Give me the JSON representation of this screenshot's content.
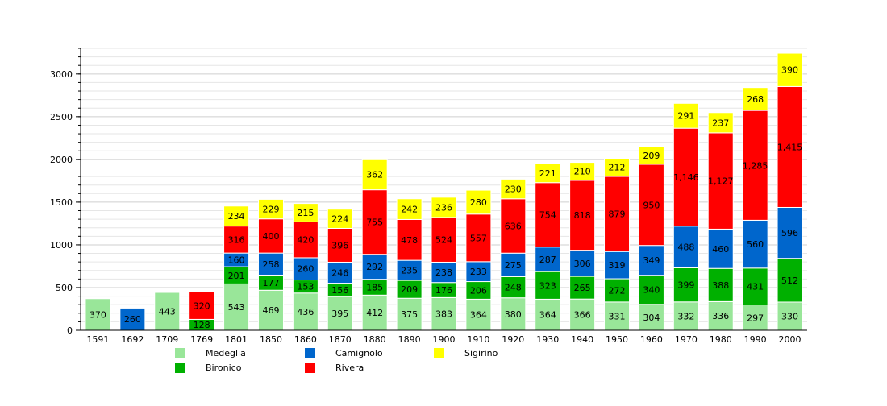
{
  "chart_data": {
    "type": "bar",
    "stacked": true,
    "categories": [
      "1591",
      "1692",
      "1709",
      "1769",
      "1801",
      "1850",
      "1860",
      "1870",
      "1880",
      "1890",
      "1900",
      "1910",
      "1920",
      "1930",
      "1940",
      "1950",
      "1960",
      "1970",
      "1980",
      "1990",
      "2000"
    ],
    "ylim": [
      0,
      3300
    ],
    "yticks": [
      0,
      500,
      1000,
      1500,
      2000,
      2500,
      3000
    ],
    "grid": true,
    "legend_position": "bottom",
    "series": [
      {
        "name": "Medeglia",
        "color": "#99e699",
        "values": [
          370,
          null,
          443,
          null,
          543,
          469,
          436,
          395,
          412,
          375,
          383,
          364,
          380,
          364,
          366,
          331,
          304,
          332,
          336,
          297,
          330
        ],
        "labels": [
          "370",
          "",
          "443",
          "",
          "543",
          "469",
          "436",
          "395",
          "412",
          "375",
          "383",
          "364",
          "380",
          "364",
          "366",
          "331",
          "304",
          "332",
          "336",
          "297",
          "330"
        ]
      },
      {
        "name": "Bironico",
        "color": "#00b000",
        "values": [
          null,
          null,
          null,
          128,
          201,
          177,
          153,
          156,
          185,
          209,
          176,
          206,
          248,
          323,
          265,
          272,
          340,
          399,
          388,
          431,
          512
        ],
        "labels": [
          "",
          "",
          "",
          "128",
          "201",
          "177",
          "153",
          "156",
          "185",
          "209",
          "176",
          "206",
          "248",
          "323",
          "265",
          "272",
          "340",
          "399",
          "388",
          "431",
          "512"
        ]
      },
      {
        "name": "Camignolo",
        "color": "#0066cc",
        "values": [
          null,
          260,
          null,
          null,
          160,
          258,
          260,
          246,
          292,
          235,
          238,
          233,
          275,
          287,
          306,
          319,
          349,
          488,
          460,
          560,
          596
        ],
        "labels": [
          "",
          "260",
          "",
          "",
          "160",
          "258",
          "260",
          "246",
          "292",
          "235",
          "238",
          "233",
          "275",
          "287",
          "306",
          "319",
          "349",
          "488",
          "460",
          "560",
          "596"
        ]
      },
      {
        "name": "Rivera",
        "color": "#ff0000",
        "values": [
          null,
          null,
          null,
          320,
          316,
          400,
          420,
          396,
          755,
          478,
          524,
          557,
          636,
          754,
          818,
          879,
          950,
          1146,
          1127,
          1285,
          1415
        ],
        "labels": [
          "",
          "",
          "",
          "320",
          "316",
          "400",
          "420",
          "396",
          "755",
          "478",
          "524",
          "557",
          "636",
          "754",
          "818",
          "879",
          "950",
          "1,146",
          "1,127",
          "1,285",
          "1,415"
        ]
      },
      {
        "name": "Sigirino",
        "color": "#ffff00",
        "values": [
          null,
          null,
          null,
          null,
          234,
          229,
          215,
          224,
          362,
          242,
          236,
          280,
          230,
          221,
          210,
          212,
          209,
          291,
          237,
          268,
          390
        ],
        "labels": [
          "",
          "",
          "",
          "",
          "234",
          "229",
          "215",
          "224",
          "362",
          "242",
          "236",
          "280",
          "230",
          "221",
          "210",
          "212",
          "209",
          "291",
          "237",
          "268",
          "390"
        ]
      }
    ]
  }
}
